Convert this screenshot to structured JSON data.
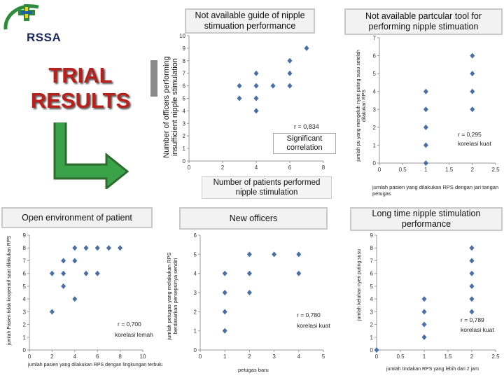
{
  "logo": {
    "text": "RSSA"
  },
  "heading": {
    "line1": "TRIAL",
    "line2": "RESULTS"
  },
  "top_center": {
    "title": "Not available guide of nipple stimuation performance",
    "ylabel": "Number of officers performing insufficient nipple stimulation",
    "xlabel": "Number of patients performed nipple stimulation",
    "corr": "r = 0,834",
    "significance": "Significant correlation"
  },
  "top_right": {
    "title": "Not available partcular tool for performing nipple stimuation",
    "ylabel": "jumlah pu yang mengeluh nyeri puting susu setelah dilakukan RPS",
    "xlabel": "jumlah pasien yang dilakukan RPS dengan jari tangan petugas",
    "corr": "r = 0,295",
    "corr_note": "korelasi kuat"
  },
  "bottom_left": {
    "title": "Open environment of patient",
    "ylabel": "jumlah Pasien tidak kooperatif saat dilakukan RPS",
    "xlabel": "jumlah pasien yang dilakukan RPS dengan lingkungan terbuka",
    "corr": "r = 0,700",
    "corr_note": "korelasi lemah"
  },
  "bottom_center": {
    "title": "New officers",
    "ylabel": "jumlah petugas yang melakukan RPS berdasarkan persepsinya sendiri",
    "xlabel": "petugas baru",
    "corr": "r = 0,780",
    "corr_note": "korelasi kuat"
  },
  "bottom_right": {
    "title": "Long time nipple stimulation performance",
    "ylabel": "jumlah keluhan nyeri puting susu",
    "xlabel": "jumlah tindakan RPS yang lebih dari 2 jam",
    "corr": "r = 0,789",
    "corr_note": "korelasi kuat"
  },
  "chart_data": [
    {
      "type": "scatter",
      "title": "Not available guide of nipple stimuation performance",
      "xlabel": "Number of patients performed nipple stimulation",
      "ylabel": "Number of officers performing insufficient nipple stimulation",
      "xlim": [
        0,
        8
      ],
      "ylim": [
        0,
        10
      ],
      "x_ticks": [
        0,
        2,
        4,
        6,
        8
      ],
      "y_ticks": [
        0,
        1,
        2,
        3,
        4,
        5,
        6,
        7,
        8,
        9,
        10
      ],
      "points": [
        [
          3,
          5
        ],
        [
          3,
          6
        ],
        [
          4,
          4
        ],
        [
          4,
          5
        ],
        [
          4,
          6
        ],
        [
          4,
          7
        ],
        [
          5,
          6
        ],
        [
          6,
          6
        ],
        [
          6,
          7
        ],
        [
          6,
          8
        ],
        [
          7,
          9
        ]
      ]
    },
    {
      "type": "scatter",
      "title": "Not available partcular tool for performing nipple stimuation",
      "xlabel": "jumlah pasien yang dilakukan RPS dengan jari tangan petugas",
      "ylabel": "jumlah pu yang mengeluh nyeri puting susu setelah dilakukan RPS",
      "xlim": [
        0,
        2.5
      ],
      "ylim": [
        0,
        7
      ],
      "x_ticks": [
        0,
        0.5,
        1,
        1.5,
        2,
        2.5
      ],
      "y_ticks": [
        0,
        1,
        2,
        3,
        4,
        5,
        6,
        7
      ],
      "points": [
        [
          1,
          0
        ],
        [
          1,
          1
        ],
        [
          1,
          2
        ],
        [
          1,
          3
        ],
        [
          1,
          4
        ],
        [
          2,
          3
        ],
        [
          2,
          4
        ],
        [
          2,
          5
        ],
        [
          2,
          6
        ]
      ]
    },
    {
      "type": "scatter",
      "title": "Open environment of patient",
      "xlabel": "jumlah pasien yang dilakukan RPS dengan lingkungan terbuka",
      "ylabel": "jumlah Pasien tidak kooperatif saat dilakukan RPS",
      "xlim": [
        0,
        10
      ],
      "ylim": [
        0,
        9
      ],
      "x_ticks": [
        0,
        2,
        4,
        6,
        8,
        10
      ],
      "y_ticks": [
        0,
        1,
        2,
        3,
        4,
        5,
        6,
        7,
        8,
        9
      ],
      "points": [
        [
          2,
          3
        ],
        [
          2,
          6
        ],
        [
          3,
          5
        ],
        [
          3,
          6
        ],
        [
          3,
          7
        ],
        [
          4,
          4
        ],
        [
          4,
          7
        ],
        [
          4,
          8
        ],
        [
          5,
          6
        ],
        [
          5,
          8
        ],
        [
          6,
          6
        ],
        [
          6,
          8
        ],
        [
          7,
          8
        ],
        [
          8,
          8
        ]
      ]
    },
    {
      "type": "scatter",
      "title": "New officers",
      "xlabel": "petugas baru",
      "ylabel": "jumlah petugas yang melakukan RPS berdasarkan persepsinya sendiri",
      "xlim": [
        0,
        5
      ],
      "ylim": [
        0,
        6
      ],
      "x_ticks": [
        0,
        1,
        2,
        3,
        4,
        5
      ],
      "y_ticks": [
        0,
        1,
        2,
        3,
        4,
        5,
        6
      ],
      "points": [
        [
          1,
          1
        ],
        [
          1,
          2
        ],
        [
          1,
          3
        ],
        [
          1,
          4
        ],
        [
          2,
          3
        ],
        [
          2,
          4
        ],
        [
          2,
          5
        ],
        [
          3,
          5
        ],
        [
          4,
          4
        ],
        [
          4,
          5
        ]
      ]
    },
    {
      "type": "scatter",
      "title": "Long time nipple stimulation performance",
      "xlabel": "jumlah tindakan RPS yang lebih dari 2 jam",
      "ylabel": "jumlah keluhan nyeri puting susu",
      "xlim": [
        0,
        2.5
      ],
      "ylim": [
        0,
        9
      ],
      "x_ticks": [
        0,
        0.5,
        1,
        1.5,
        2,
        2.5
      ],
      "y_ticks": [
        0,
        1,
        2,
        3,
        4,
        5,
        6,
        7,
        8,
        9
      ],
      "points": [
        [
          0,
          0
        ],
        [
          1,
          1
        ],
        [
          1,
          2
        ],
        [
          1,
          3
        ],
        [
          1,
          4
        ],
        [
          2,
          3
        ],
        [
          2,
          4
        ],
        [
          2,
          5
        ],
        [
          2,
          6
        ],
        [
          2,
          7
        ],
        [
          2,
          8
        ]
      ]
    }
  ]
}
